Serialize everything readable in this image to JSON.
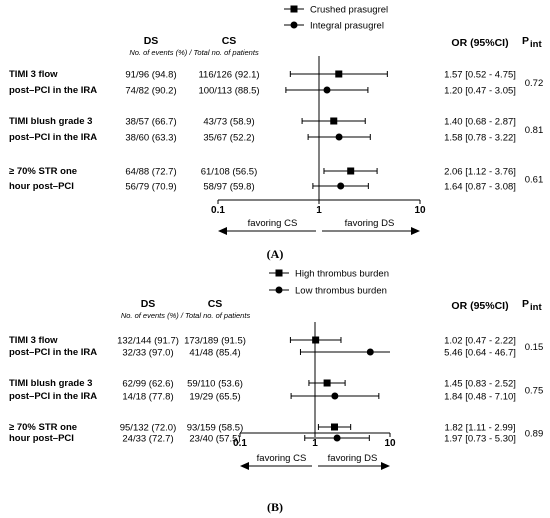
{
  "chart_data": [
    {
      "type": "forest",
      "panel_label": "(A)",
      "legend": [
        "Crushed prasugrel",
        "Integral prasugrel"
      ],
      "columns": {
        "ds": "DS",
        "cs": "CS",
        "subheader": "No. of events (%) / Total no. of patients",
        "or": "OR (95%CI)",
        "pint": "P",
        "pint_sub": "int"
      },
      "axis": {
        "scale": "log",
        "min": 0.1,
        "max": 10,
        "ticks": [
          "0.1",
          "1",
          "10"
        ]
      },
      "favor_left": "favoring CS",
      "favor_right": "favoring DS",
      "groups": [
        {
          "label1": "TIMI 3 flow",
          "label2": "post–PCI in the IRA",
          "pint": "0.72",
          "rows": [
            {
              "ds": "91/96 (94.8)",
              "cs": "116/126 (92.1)",
              "or_text": "1.57 [0.52 - 4.75]",
              "or": 1.57,
              "lo": 0.52,
              "hi": 4.75
            },
            {
              "ds": "74/82 (90.2)",
              "cs": "100/113 (88.5)",
              "or_text": "1.20 [0.47 - 3.05]",
              "or": 1.2,
              "lo": 0.47,
              "hi": 3.05
            }
          ]
        },
        {
          "label1": "TIMI blush grade 3",
          "label2": "post–PCI in the IRA",
          "pint": "0.81",
          "rows": [
            {
              "ds": "38/57 (66.7)",
              "cs": "43/73 (58.9)",
              "or_text": "1.40 [0.68 - 2.87]",
              "or": 1.4,
              "lo": 0.68,
              "hi": 2.87
            },
            {
              "ds": "38/60 (63.3)",
              "cs": "35/67 (52.2)",
              "or_text": "1.58 [0.78 - 3.22]",
              "or": 1.58,
              "lo": 0.78,
              "hi": 3.22
            }
          ]
        },
        {
          "label1": "≥ 70% STR one",
          "label2": "hour post–PCI",
          "pint": "0.61",
          "rows": [
            {
              "ds": "64/88 (72.7)",
              "cs": "61/108 (56.5)",
              "or_text": "2.06 [1.12 - 3.76]",
              "or": 2.06,
              "lo": 1.12,
              "hi": 3.76
            },
            {
              "ds": "56/79 (70.9)",
              "cs": "58/97 (59.8)",
              "or_text": "1.64 [0.87 - 3.08]",
              "or": 1.64,
              "lo": 0.87,
              "hi": 3.08
            }
          ]
        }
      ]
    },
    {
      "type": "forest",
      "panel_label": "(B)",
      "legend": [
        "High thrombus burden",
        "Low thrombus burden"
      ],
      "columns": {
        "ds": "DS",
        "cs": "CS",
        "subheader": "No. of events (%) / Total no. of patients",
        "or": "OR (95%CI)",
        "pint": "P",
        "pint_sub": "int"
      },
      "axis": {
        "scale": "log",
        "min": 0.1,
        "max": 10,
        "ticks": [
          "0.1",
          "1",
          "10"
        ]
      },
      "favor_left": "favoring CS",
      "favor_right": "favoring DS",
      "groups": [
        {
          "label1": "TIMI 3 flow",
          "label2": "post–PCI in the IRA",
          "pint": "0.15",
          "rows": [
            {
              "ds": "132/144 (91.7)",
              "cs": "173/189 (91.5)",
              "or_text": "1.02 [0.47 - 2.22]",
              "or": 1.02,
              "lo": 0.47,
              "hi": 2.22
            },
            {
              "ds": "32/33 (97.0)",
              "cs": "41/48 (85.4)",
              "or_text": "5.46 [0.64 - 46.7]",
              "or": 5.46,
              "lo": 0.64,
              "hi": 46.7
            }
          ]
        },
        {
          "label1": "TIMI blush grade 3",
          "label2": "post–PCI in the IRA",
          "pint": "0.75",
          "rows": [
            {
              "ds": "62/99 (62.6)",
              "cs": "59/110 (53.6)",
              "or_text": "1.45 [0.83 - 2.52]",
              "or": 1.45,
              "lo": 0.83,
              "hi": 2.52
            },
            {
              "ds": "14/18 (77.8)",
              "cs": "19/29 (65.5)",
              "or_text": "1.84 [0.48 - 7.10]",
              "or": 1.84,
              "lo": 0.48,
              "hi": 7.1
            }
          ]
        },
        {
          "label1": "≥ 70% STR one",
          "label2": "hour post–PCI",
          "pint": "0.89",
          "rows": [
            {
              "ds": "95/132 (72.0)",
              "cs": "93/159 (58.5)",
              "or_text": "1.82 [1.11 - 2.99]",
              "or": 1.82,
              "lo": 1.11,
              "hi": 2.99
            },
            {
              "ds": "24/33 (72.7)",
              "cs": "23/40 (57.5)",
              "or_text": "1.97 [0.73 - 5.30]",
              "or": 1.97,
              "lo": 0.73,
              "hi": 5.3
            }
          ]
        }
      ]
    }
  ]
}
